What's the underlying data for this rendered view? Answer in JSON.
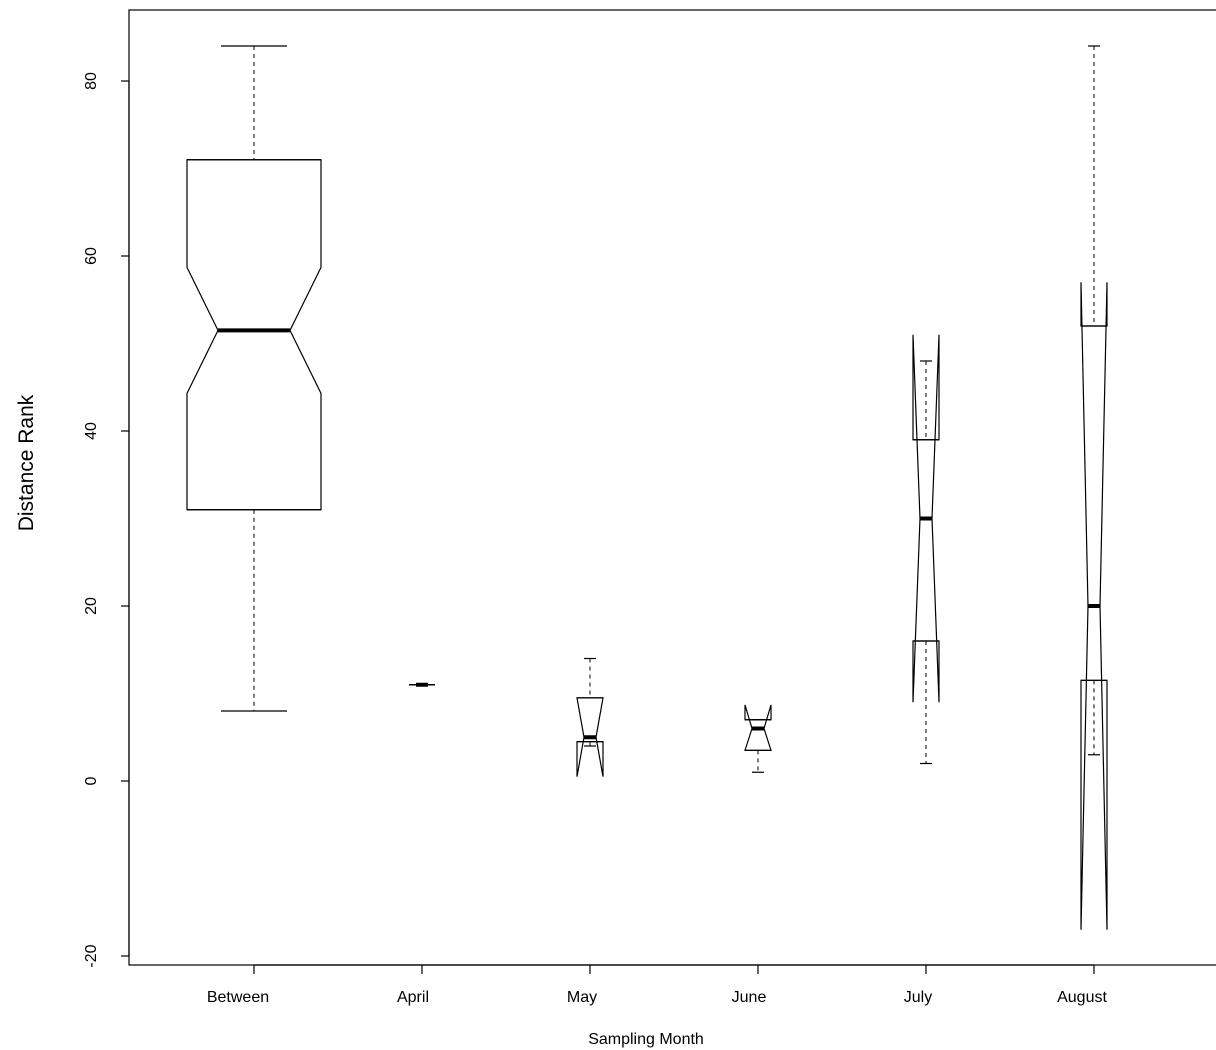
{
  "chart_data": {
    "type": "boxplot",
    "notched": true,
    "xlabel": "Sampling Month",
    "ylabel": "Distance Rank",
    "ylim": [
      -21,
      88
    ],
    "yticks": [
      -20,
      0,
      20,
      40,
      60,
      80
    ],
    "categories": [
      "Between",
      "April",
      "May",
      "June",
      "July",
      "August"
    ],
    "boxes": [
      {
        "label": "Between",
        "whisker_low": 8,
        "q1": 31,
        "median": 51.5,
        "q3": 71,
        "whisker_high": 84,
        "notch_low": 44.3,
        "notch_high": 58.7
      },
      {
        "label": "April",
        "whisker_low": 11,
        "q1": 11,
        "median": 11,
        "q3": 11,
        "whisker_high": 11,
        "notch_low": 11,
        "notch_high": 11
      },
      {
        "label": "May",
        "whisker_low": 4,
        "q1": 4.5,
        "median": 5,
        "q3": 9.5,
        "whisker_high": 14,
        "notch_low": 0.5,
        "notch_high": 9.5
      },
      {
        "label": "June",
        "whisker_low": 1,
        "q1": 3.5,
        "median": 6,
        "q3": 7,
        "whisker_high": 7,
        "notch_low": 3.5,
        "notch_high": 8.7
      },
      {
        "label": "July",
        "whisker_low": 2,
        "q1": 16,
        "median": 30,
        "q3": 39,
        "whisker_high": 48,
        "notch_low": 9,
        "notch_high": 51
      },
      {
        "label": "August",
        "whisker_low": 3,
        "q1": 11.5,
        "median": 20,
        "q3": 52,
        "whisker_high": 84,
        "notch_low": -17,
        "notch_high": 57
      }
    ]
  }
}
